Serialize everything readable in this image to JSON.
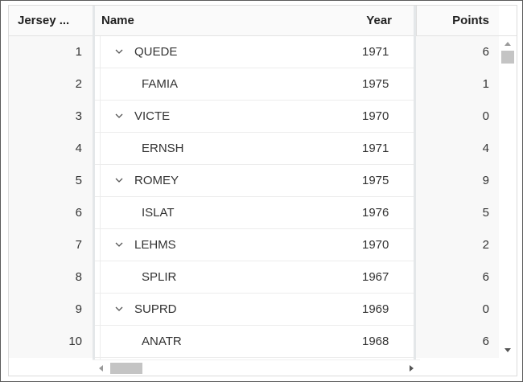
{
  "columns": {
    "jersey": "Jersey ...",
    "name": "Name",
    "year": "Year",
    "points": "Points"
  },
  "rows": [
    {
      "jersey": "1",
      "name": "QUEDE",
      "year": "1971",
      "points": "6",
      "expandable": true
    },
    {
      "jersey": "2",
      "name": "FAMIA",
      "year": "1975",
      "points": "1",
      "expandable": false
    },
    {
      "jersey": "3",
      "name": "VICTE",
      "year": "1970",
      "points": "0",
      "expandable": true
    },
    {
      "jersey": "4",
      "name": "ERNSH",
      "year": "1971",
      "points": "4",
      "expandable": false
    },
    {
      "jersey": "5",
      "name": "ROMEY",
      "year": "1975",
      "points": "9",
      "expandable": true
    },
    {
      "jersey": "6",
      "name": "ISLAT",
      "year": "1976",
      "points": "5",
      "expandable": false
    },
    {
      "jersey": "7",
      "name": "LEHMS",
      "year": "1970",
      "points": "2",
      "expandable": true
    },
    {
      "jersey": "8",
      "name": "SPLIR",
      "year": "1967",
      "points": "6",
      "expandable": false
    },
    {
      "jersey": "9",
      "name": "SUPRD",
      "year": "1969",
      "points": "0",
      "expandable": true
    },
    {
      "jersey": "10",
      "name": "ANATR",
      "year": "1968",
      "points": "6",
      "expandable": false
    }
  ],
  "icons": {
    "expand": "chevron-down-icon",
    "scroll_up": "triangle-up-icon",
    "scroll_down": "triangle-down-icon",
    "scroll_left": "triangle-left-icon",
    "scroll_right": "triangle-right-icon"
  },
  "colors": {
    "frame_border": "#5a5a5a",
    "header_bg": "#fafafa",
    "frozen_bg": "#f8f8f8",
    "scroll_thumb": "#c4c4c4",
    "text": "#333333"
  }
}
